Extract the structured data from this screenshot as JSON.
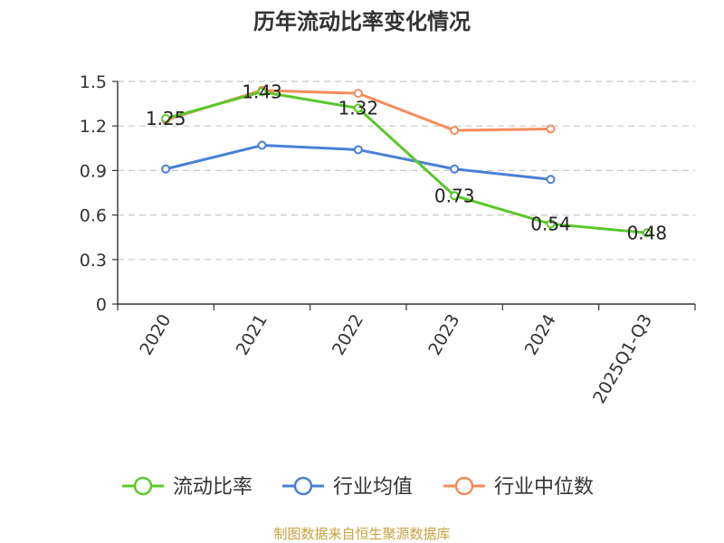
{
  "chart_data": {
    "type": "line",
    "title": "历年流动比率变化情况",
    "categories": [
      "2020",
      "2021",
      "2022",
      "2023",
      "2024",
      "2025Q1-Q3"
    ],
    "ylim": [
      0,
      1.5
    ],
    "yticks": [
      0,
      0.3,
      0.6,
      0.9,
      1.2,
      1.5
    ],
    "ytick_labels": [
      "0",
      "0.3",
      "0.6",
      "0.9",
      "1.2",
      "1.5"
    ],
    "grid": true,
    "legend_position": "bottom",
    "series": [
      {
        "name": "流动比率",
        "color": "#5cc72a",
        "values": [
          1.25,
          1.43,
          1.32,
          0.73,
          0.54,
          0.48
        ],
        "labels": [
          "1.25",
          "1.43",
          "1.32",
          "0.73",
          "0.54",
          "0.48"
        ]
      },
      {
        "name": "行业均值",
        "color": "#4a7fd6",
        "values": [
          0.91,
          1.07,
          1.04,
          0.91,
          0.84,
          null
        ]
      },
      {
        "name": "行业中位数",
        "color": "#f68b5a",
        "values": [
          1.24,
          1.44,
          1.42,
          1.17,
          1.18,
          null
        ]
      }
    ],
    "source": "制图数据来自恒生聚源数据库"
  }
}
